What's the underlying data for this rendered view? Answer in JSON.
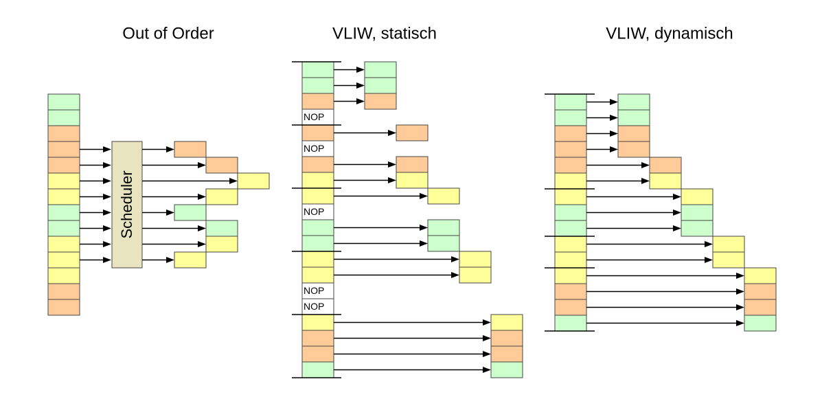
{
  "panels": [
    {
      "title": "Out of Order",
      "scheduler": "Scheduler"
    },
    {
      "title": "VLIW, statisch",
      "nops": [
        "NOP",
        "NOP",
        "NOP",
        "NOP",
        "NOP"
      ]
    },
    {
      "title": "VLIW, dynamisch"
    }
  ]
}
